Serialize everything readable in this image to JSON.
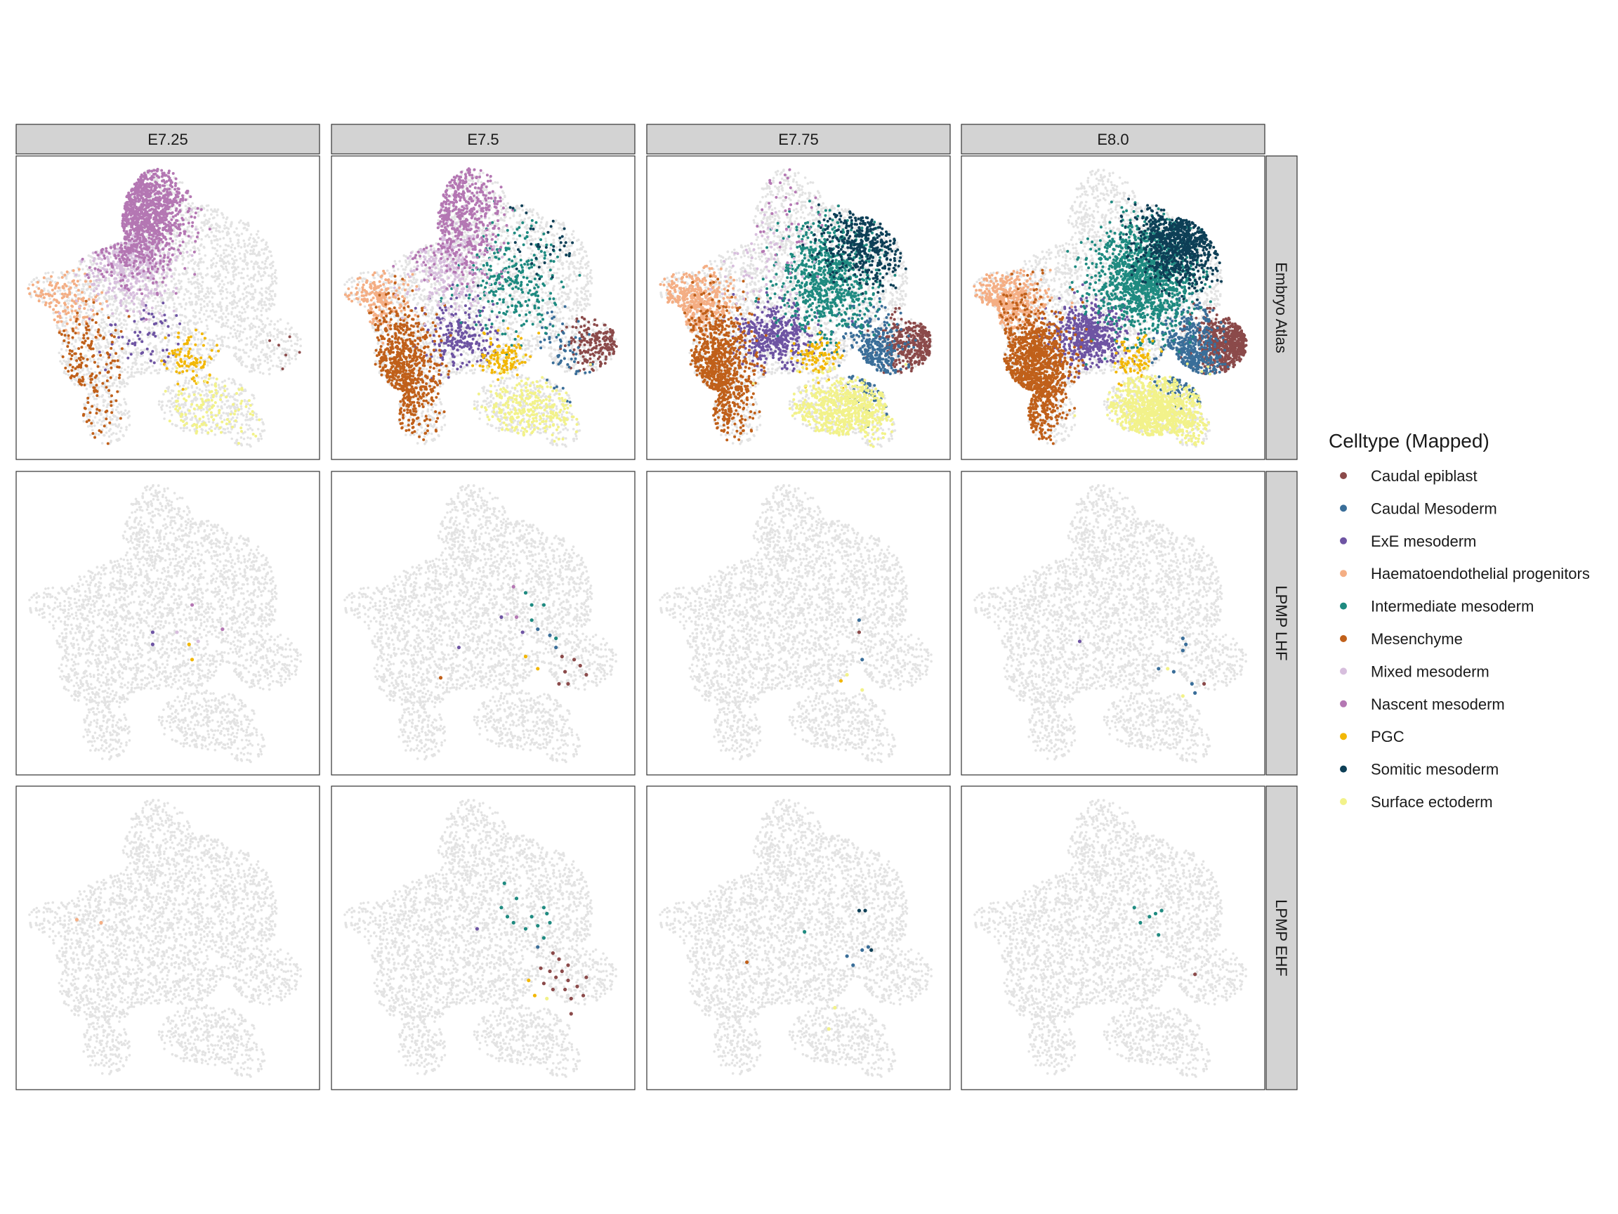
{
  "chart_data": {
    "type": "scatter",
    "description_axes": "UMAP embedding, faceted by stage (columns) and dataset (rows); no axes drawn",
    "columns": [
      "E7.25",
      "E7.5",
      "E7.75",
      "E8.0"
    ],
    "rows": [
      "Embryo Atlas",
      "LPMP LHF",
      "LPMP EHF"
    ],
    "legend": {
      "title": "Celltype (Mapped)",
      "placement": "right",
      "items": [
        {
          "label": "Caudal epiblast",
          "color": "#8B4A4A"
        },
        {
          "label": "Caudal Mesoderm",
          "color": "#3A6E99"
        },
        {
          "label": "ExE mesoderm",
          "color": "#6E54A3"
        },
        {
          "label": "Haematoendothelial progenitors",
          "color": "#F4AE84"
        },
        {
          "label": "Intermediate mesoderm",
          "color": "#1E8A80"
        },
        {
          "label": "Mesenchyme",
          "color": "#C0601A"
        },
        {
          "label": "Mixed mesoderm",
          "color": "#D7BEDD"
        },
        {
          "label": "Nascent mesoderm",
          "color": "#B477B3"
        },
        {
          "label": "PGC",
          "color": "#F2B705"
        },
        {
          "label": "Somitic mesoderm",
          "color": "#0D3F56"
        },
        {
          "label": "Surface ectoderm",
          "color": "#F2F28A"
        }
      ]
    },
    "background_color": "#E3E3E3",
    "cluster_centers": {
      "Caudal epiblast": [
        0.9,
        0.62
      ],
      "Caudal Mesoderm": [
        0.75,
        0.66
      ],
      "ExE mesoderm": [
        0.42,
        0.59
      ],
      "Haematoendothelial progenitors": [
        0.15,
        0.48
      ],
      "Intermediate mesoderm": [
        0.6,
        0.4
      ],
      "Mesenchyme": [
        0.23,
        0.72
      ],
      "Mixed mesoderm": [
        0.38,
        0.35
      ],
      "Nascent mesoderm": [
        0.4,
        0.18
      ],
      "PGC": [
        0.57,
        0.67
      ],
      "Somitic mesoderm": [
        0.72,
        0.28
      ],
      "Surface ectoderm": [
        0.65,
        0.84
      ]
    },
    "atlas_counts": [
      {
        "Caudal epiblast": 6,
        "Caudal Mesoderm": 0,
        "ExE mesoderm": 60,
        "Haematoendothelial progenitors": 140,
        "Intermediate mesoderm": 0,
        "Mesenchyme": 180,
        "Mixed mesoderm": 450,
        "Nascent mesoderm": 1100,
        "PGC": 90,
        "Somitic mesoderm": 0,
        "Surface ectoderm": 120
      },
      {
        "Caudal epiblast": 180,
        "Caudal Mesoderm": 60,
        "ExE mesoderm": 220,
        "Haematoendothelial progenitors": 200,
        "Intermediate mesoderm": 280,
        "Mesenchyme": 700,
        "Mixed mesoderm": 300,
        "Nascent mesoderm": 500,
        "PGC": 110,
        "Somitic mesoderm": 40,
        "Surface ectoderm": 280
      },
      {
        "Caudal epiblast": 350,
        "Caudal Mesoderm": 350,
        "ExE mesoderm": 420,
        "Haematoendothelial progenitors": 420,
        "Intermediate mesoderm": 800,
        "Mesenchyme": 850,
        "Mixed mesoderm": 70,
        "Nascent mesoderm": 40,
        "PGC": 90,
        "Somitic mesoderm": 400,
        "Surface ectoderm": 650
      },
      {
        "Caudal epiblast": 650,
        "Caudal Mesoderm": 500,
        "ExE mesoderm": 550,
        "Haematoendothelial progenitors": 450,
        "Intermediate mesoderm": 1300,
        "Mesenchyme": 1200,
        "Mixed mesoderm": 0,
        "Nascent mesoderm": 0,
        "PGC": 80,
        "Somitic mesoderm": 800,
        "Surface ectoderm": 1000
      }
    ],
    "sparse_points": [
      [],
      [
        [
          {
            "type": "Nascent mesoderm",
            "x": 0.58,
            "y": 0.44
          },
          {
            "type": "ExE mesoderm",
            "x": 0.45,
            "y": 0.53
          },
          {
            "type": "Mixed mesoderm",
            "x": 0.53,
            "y": 0.53
          },
          {
            "type": "Nascent mesoderm",
            "x": 0.68,
            "y": 0.52
          },
          {
            "type": "ExE mesoderm",
            "x": 0.45,
            "y": 0.57
          },
          {
            "type": "PGC",
            "x": 0.57,
            "y": 0.57
          },
          {
            "type": "Mixed mesoderm",
            "x": 0.6,
            "y": 0.56
          },
          {
            "type": "PGC",
            "x": 0.58,
            "y": 0.62
          }
        ]
      ],
      [
        [
          {
            "type": "Haematoendothelial progenitors",
            "x": 0.2,
            "y": 0.44
          },
          {
            "type": "Haematoendothelial progenitors",
            "x": 0.28,
            "y": 0.45
          }
        ]
      ]
    ],
    "sparse_lhf": [
      [
        {
          "type": "Nascent mesoderm",
          "x": 0.58,
          "y": 0.44
        },
        {
          "type": "ExE mesoderm",
          "x": 0.45,
          "y": 0.53
        },
        {
          "type": "Mixed mesoderm",
          "x": 0.53,
          "y": 0.53
        },
        {
          "type": "Nascent mesoderm",
          "x": 0.68,
          "y": 0.52
        },
        {
          "type": "ExE mesoderm",
          "x": 0.45,
          "y": 0.57
        },
        {
          "type": "PGC",
          "x": 0.57,
          "y": 0.57
        },
        {
          "type": "Mixed mesoderm",
          "x": 0.6,
          "y": 0.56
        },
        {
          "type": "PGC",
          "x": 0.58,
          "y": 0.62
        }
      ],
      [
        {
          "type": "Nascent mesoderm",
          "x": 0.6,
          "y": 0.38
        },
        {
          "type": "Intermediate mesoderm",
          "x": 0.64,
          "y": 0.4
        },
        {
          "type": "Intermediate mesoderm",
          "x": 0.66,
          "y": 0.44
        },
        {
          "type": "Nascent mesoderm",
          "x": 0.61,
          "y": 0.48
        },
        {
          "type": "Mixed mesoderm",
          "x": 0.58,
          "y": 0.47
        },
        {
          "type": "ExE mesoderm",
          "x": 0.56,
          "y": 0.48
        },
        {
          "type": "Intermediate mesoderm",
          "x": 0.66,
          "y": 0.49
        },
        {
          "type": "Caudal Mesoderm",
          "x": 0.68,
          "y": 0.52
        },
        {
          "type": "ExE mesoderm",
          "x": 0.63,
          "y": 0.53
        },
        {
          "type": "Caudal Mesoderm",
          "x": 0.72,
          "y": 0.54
        },
        {
          "type": "Intermediate mesoderm",
          "x": 0.74,
          "y": 0.55
        },
        {
          "type": "Caudal Mesoderm",
          "x": 0.74,
          "y": 0.58
        },
        {
          "type": "Caudal epiblast",
          "x": 0.76,
          "y": 0.61
        },
        {
          "type": "Caudal epiblast",
          "x": 0.8,
          "y": 0.62
        },
        {
          "type": "Caudal epiblast",
          "x": 0.82,
          "y": 0.64
        },
        {
          "type": "PGC",
          "x": 0.64,
          "y": 0.61
        },
        {
          "type": "Caudal epiblast",
          "x": 0.77,
          "y": 0.66
        },
        {
          "type": "Caudal epiblast",
          "x": 0.84,
          "y": 0.67
        },
        {
          "type": "ExE mesoderm",
          "x": 0.42,
          "y": 0.58
        },
        {
          "type": "Mesenchyme",
          "x": 0.36,
          "y": 0.68
        },
        {
          "type": "Caudal epiblast",
          "x": 0.75,
          "y": 0.7
        },
        {
          "type": "Caudal epiblast",
          "x": 0.78,
          "y": 0.7
        },
        {
          "type": "PGC",
          "x": 0.68,
          "y": 0.65
        },
        {
          "type": "Intermediate mesoderm",
          "x": 0.7,
          "y": 0.44
        }
      ],
      [
        {
          "type": "Caudal epiblast",
          "x": 0.7,
          "y": 0.53
        },
        {
          "type": "Caudal Mesoderm",
          "x": 0.7,
          "y": 0.49
        },
        {
          "type": "Caudal Mesoderm",
          "x": 0.71,
          "y": 0.62
        },
        {
          "type": "Surface ectoderm",
          "x": 0.66,
          "y": 0.67
        },
        {
          "type": "Surface ectoderm",
          "x": 0.71,
          "y": 0.72
        },
        {
          "type": "PGC",
          "x": 0.64,
          "y": 0.69
        }
      ],
      [
        {
          "type": "ExE mesoderm",
          "x": 0.39,
          "y": 0.56
        },
        {
          "type": "Caudal Mesoderm",
          "x": 0.73,
          "y": 0.55
        },
        {
          "type": "Caudal Mesoderm",
          "x": 0.74,
          "y": 0.57
        },
        {
          "type": "Caudal Mesoderm",
          "x": 0.73,
          "y": 0.59
        },
        {
          "type": "Caudal Mesoderm",
          "x": 0.65,
          "y": 0.65
        },
        {
          "type": "Caudal Mesoderm",
          "x": 0.7,
          "y": 0.66
        },
        {
          "type": "Surface ectoderm",
          "x": 0.68,
          "y": 0.65
        },
        {
          "type": "Caudal Mesoderm",
          "x": 0.76,
          "y": 0.7
        },
        {
          "type": "Caudal epiblast",
          "x": 0.8,
          "y": 0.7
        },
        {
          "type": "Caudal Mesoderm",
          "x": 0.77,
          "y": 0.73
        },
        {
          "type": "Surface ectoderm",
          "x": 0.73,
          "y": 0.74
        }
      ]
    ],
    "sparse_ehf": [
      [
        {
          "type": "Haematoendothelial progenitors",
          "x": 0.2,
          "y": 0.44
        },
        {
          "type": "Haematoendothelial progenitors",
          "x": 0.28,
          "y": 0.45
        }
      ],
      [
        {
          "type": "Intermediate mesoderm",
          "x": 0.57,
          "y": 0.32
        },
        {
          "type": "Intermediate mesoderm",
          "x": 0.61,
          "y": 0.37
        },
        {
          "type": "Intermediate mesoderm",
          "x": 0.58,
          "y": 0.43
        },
        {
          "type": "Intermediate mesoderm",
          "x": 0.6,
          "y": 0.45
        },
        {
          "type": "Intermediate mesoderm",
          "x": 0.66,
          "y": 0.43
        },
        {
          "type": "Intermediate mesoderm",
          "x": 0.7,
          "y": 0.4
        },
        {
          "type": "Intermediate mesoderm",
          "x": 0.71,
          "y": 0.42
        },
        {
          "type": "Intermediate mesoderm",
          "x": 0.72,
          "y": 0.45
        },
        {
          "type": "Intermediate mesoderm",
          "x": 0.68,
          "y": 0.46
        },
        {
          "type": "Intermediate mesoderm",
          "x": 0.64,
          "y": 0.47
        },
        {
          "type": "ExE mesoderm",
          "x": 0.48,
          "y": 0.47
        },
        {
          "type": "Caudal Mesoderm",
          "x": 0.68,
          "y": 0.53
        },
        {
          "type": "Intermediate mesoderm",
          "x": 0.7,
          "y": 0.5
        },
        {
          "type": "Caudal epiblast",
          "x": 0.73,
          "y": 0.55
        },
        {
          "type": "Caudal epiblast",
          "x": 0.75,
          "y": 0.57
        },
        {
          "type": "Caudal epiblast",
          "x": 0.69,
          "y": 0.6
        },
        {
          "type": "Caudal epiblast",
          "x": 0.72,
          "y": 0.61
        },
        {
          "type": "Caudal epiblast",
          "x": 0.76,
          "y": 0.61
        },
        {
          "type": "Caudal epiblast",
          "x": 0.78,
          "y": 0.59
        },
        {
          "type": "Caudal epiblast",
          "x": 0.74,
          "y": 0.63
        },
        {
          "type": "Caudal epiblast",
          "x": 0.78,
          "y": 0.64
        },
        {
          "type": "Caudal epiblast",
          "x": 0.7,
          "y": 0.65
        },
        {
          "type": "Caudal epiblast",
          "x": 0.73,
          "y": 0.67
        },
        {
          "type": "Caudal epiblast",
          "x": 0.77,
          "y": 0.67
        },
        {
          "type": "Caudal epiblast",
          "x": 0.81,
          "y": 0.66
        },
        {
          "type": "Caudal epiblast",
          "x": 0.79,
          "y": 0.7
        },
        {
          "type": "Caudal epiblast",
          "x": 0.83,
          "y": 0.69
        },
        {
          "type": "Caudal epiblast",
          "x": 0.84,
          "y": 0.63
        },
        {
          "type": "PGC",
          "x": 0.65,
          "y": 0.64
        },
        {
          "type": "PGC",
          "x": 0.67,
          "y": 0.69
        },
        {
          "type": "Surface ectoderm",
          "x": 0.71,
          "y": 0.7
        },
        {
          "type": "Caudal epiblast",
          "x": 0.79,
          "y": 0.75
        },
        {
          "type": "Intermediate mesoderm",
          "x": 0.56,
          "y": 0.4
        }
      ],
      [
        {
          "type": "Mesenchyme",
          "x": 0.33,
          "y": 0.58
        },
        {
          "type": "Intermediate mesoderm",
          "x": 0.52,
          "y": 0.48
        },
        {
          "type": "Somitic mesoderm",
          "x": 0.7,
          "y": 0.41
        },
        {
          "type": "Somitic mesoderm",
          "x": 0.72,
          "y": 0.41
        },
        {
          "type": "Caudal Mesoderm",
          "x": 0.71,
          "y": 0.54
        },
        {
          "type": "Caudal Mesoderm",
          "x": 0.73,
          "y": 0.53
        },
        {
          "type": "Somitic mesoderm",
          "x": 0.74,
          "y": 0.54
        },
        {
          "type": "Caudal Mesoderm",
          "x": 0.66,
          "y": 0.56
        },
        {
          "type": "Caudal Mesoderm",
          "x": 0.68,
          "y": 0.59
        },
        {
          "type": "Surface ectoderm",
          "x": 0.62,
          "y": 0.73
        },
        {
          "type": "Surface ectoderm",
          "x": 0.6,
          "y": 0.8
        }
      ],
      [
        {
          "type": "Intermediate mesoderm",
          "x": 0.57,
          "y": 0.4
        },
        {
          "type": "Intermediate mesoderm",
          "x": 0.59,
          "y": 0.45
        },
        {
          "type": "Intermediate mesoderm",
          "x": 0.62,
          "y": 0.43
        },
        {
          "type": "Intermediate mesoderm",
          "x": 0.64,
          "y": 0.42
        },
        {
          "type": "Intermediate mesoderm",
          "x": 0.66,
          "y": 0.41
        },
        {
          "type": "Intermediate mesoderm",
          "x": 0.65,
          "y": 0.49
        },
        {
          "type": "Caudal epiblast",
          "x": 0.77,
          "y": 0.62
        }
      ]
    ]
  }
}
